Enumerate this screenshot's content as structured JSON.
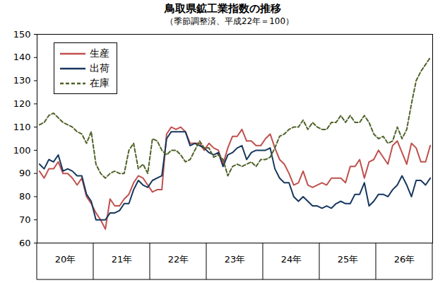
{
  "chart_data": {
    "type": "line",
    "title": "鳥取県鉱工業指数の推移",
    "subtitle": "（季節調整済、平成22年＝100）",
    "categories": [
      null,
      null,
      null,
      null,
      null,
      null,
      "20年",
      null,
      null,
      null,
      null,
      null,
      null,
      null,
      null,
      null,
      null,
      null,
      "21年",
      null,
      null,
      null,
      null,
      null,
      null,
      null,
      null,
      null,
      null,
      null,
      "22年",
      null,
      null,
      null,
      null,
      null,
      null,
      null,
      null,
      null,
      null,
      null,
      "23年",
      null,
      null,
      null,
      null,
      null,
      null,
      null,
      null,
      null,
      null,
      null,
      "24年",
      null,
      null,
      null,
      null,
      null,
      null,
      null,
      null,
      null,
      null,
      null,
      "25年",
      null,
      null,
      null,
      null,
      null,
      null,
      null,
      null,
      null,
      null,
      null,
      "26年",
      null,
      null,
      null,
      null,
      null
    ],
    "series": [
      {
        "name": "生産",
        "color": "#c0504d",
        "line_style": "solid",
        "values": [
          91,
          88,
          92,
          92,
          95,
          90,
          90,
          88,
          85,
          88,
          80,
          77,
          73,
          70,
          66,
          79,
          76,
          76,
          79,
          81,
          86,
          89,
          88,
          85,
          82,
          83,
          83,
          107,
          110,
          109,
          110,
          108,
          103,
          103,
          103,
          100,
          103,
          101,
          100,
          94,
          101,
          106,
          106,
          109,
          104,
          104,
          102,
          102,
          105,
          107,
          101,
          96,
          94,
          90,
          85,
          86,
          91,
          85,
          84,
          85,
          86,
          85,
          88,
          88,
          88,
          86,
          93,
          93,
          96,
          88,
          95,
          96,
          100,
          97,
          94,
          102,
          104,
          99,
          94,
          103,
          101,
          95,
          95,
          102
        ]
      },
      {
        "name": "出荷",
        "color": "#17375e",
        "line_style": "solid",
        "values": [
          94,
          92,
          96,
          95,
          98,
          91,
          92,
          91,
          89,
          89,
          81,
          78,
          70,
          70,
          70,
          73,
          73,
          74,
          77,
          77,
          83,
          87,
          85,
          84,
          87,
          88,
          89,
          105,
          108,
          108,
          108,
          108,
          102,
          103,
          102,
          101,
          99,
          98,
          99,
          93,
          98,
          99,
          101,
          102,
          96,
          99,
          100,
          100,
          100,
          101,
          92,
          88,
          86,
          86,
          80,
          78,
          80,
          78,
          76,
          76,
          75,
          76,
          75,
          77,
          78,
          77,
          77,
          81,
          81,
          86,
          76,
          78,
          81,
          81,
          80,
          83,
          85,
          89,
          85,
          80,
          87,
          87,
          85,
          88
        ]
      },
      {
        "name": "在庫",
        "color": "#4f6228",
        "line_style": "dashed",
        "values": [
          111,
          112,
          115,
          116,
          114,
          112,
          111,
          110,
          108,
          107,
          103,
          108,
          94,
          90,
          88,
          90,
          91,
          90,
          90,
          100,
          103,
          92,
          94,
          90,
          105,
          104,
          100,
          98,
          100,
          100,
          98,
          95,
          96,
          100,
          104,
          101,
          101,
          97,
          98,
          96,
          89,
          93,
          94,
          93,
          94,
          95,
          93,
          96,
          96,
          97,
          101,
          106,
          107,
          109,
          110,
          110,
          113,
          109,
          112,
          110,
          109,
          109,
          112,
          112,
          115,
          112,
          115,
          112,
          112,
          115,
          112,
          107,
          105,
          106,
          103,
          104,
          110,
          105,
          109,
          120,
          130,
          134,
          137,
          140
        ]
      }
    ],
    "ylim": [
      60,
      150
    ],
    "yticks": [
      60,
      70,
      80,
      90,
      100,
      110,
      120,
      130,
      140,
      150
    ],
    "grid": false,
    "legend": "top-left"
  }
}
